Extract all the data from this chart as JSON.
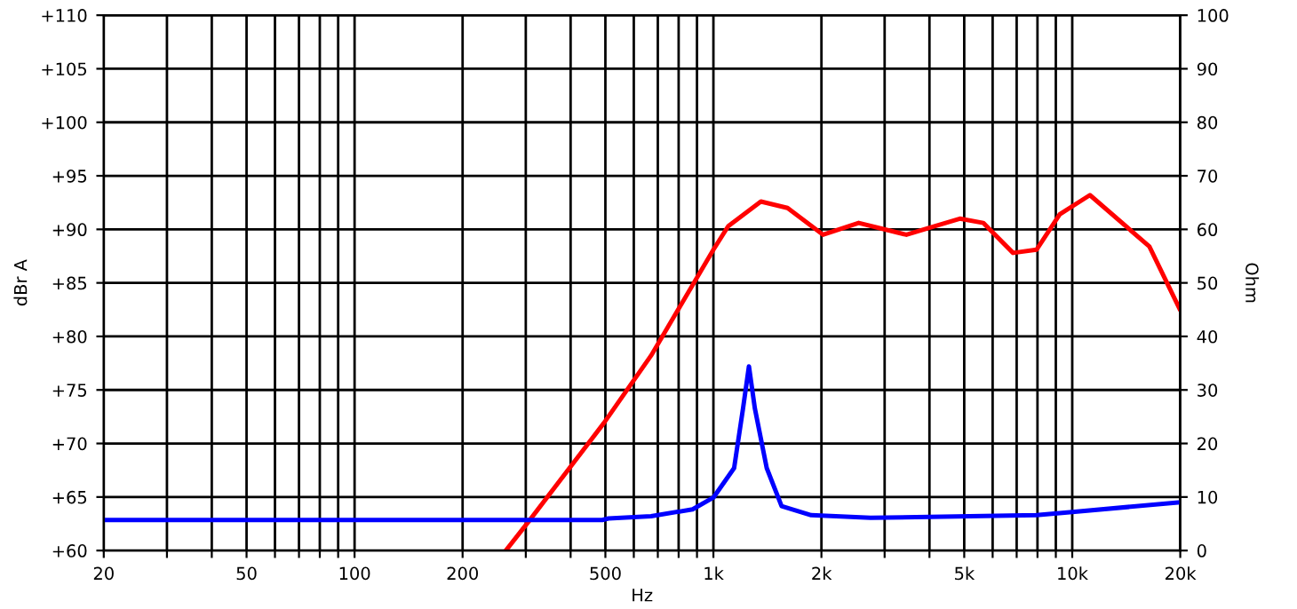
{
  "chart_data": {
    "type": "line",
    "xlabel": "Hz",
    "ylabel": "dBr A",
    "y2label": "Ohm",
    "log": "x",
    "grid": true,
    "marker": "none",
    "line_style": "solid",
    "xlim": [
      20,
      20000
    ],
    "xticks": [
      20,
      {
        "value": 30,
        "label": null
      },
      {
        "value": 40,
        "label": null
      },
      50,
      {
        "value": 60,
        "label": null
      },
      {
        "value": 70,
        "label": null
      },
      {
        "value": 80,
        "label": null
      },
      {
        "value": 90,
        "label": null
      },
      100,
      200,
      {
        "value": 300,
        "label": null
      },
      {
        "value": 400,
        "label": null
      },
      500,
      {
        "value": 600,
        "label": null
      },
      {
        "value": 700,
        "label": null
      },
      {
        "value": 800,
        "label": null
      },
      {
        "value": 900,
        "label": null
      },
      {
        "value": 1000,
        "label": "1k"
      },
      {
        "value": 2000,
        "label": "2k"
      },
      {
        "value": 3000,
        "label": null
      },
      {
        "value": 4000,
        "label": null
      },
      {
        "value": 5000,
        "label": "5k"
      },
      {
        "value": 6000,
        "label": null
      },
      {
        "value": 7000,
        "label": null
      },
      {
        "value": 8000,
        "label": null
      },
      {
        "value": 9000,
        "label": null
      },
      {
        "value": 10000,
        "label": "10k"
      },
      {
        "value": 20000,
        "label": "20k"
      }
    ],
    "ylim": [
      60,
      110
    ],
    "yticks": [
      {
        "value": 60,
        "label": "+60"
      },
      {
        "value": 65,
        "label": "+65"
      },
      {
        "value": 70,
        "label": "+70"
      },
      {
        "value": 75,
        "label": "+75"
      },
      {
        "value": 80,
        "label": "+80"
      },
      {
        "value": 85,
        "label": "+85"
      },
      {
        "value": 90,
        "label": "+90"
      },
      {
        "value": 95,
        "label": "+95"
      },
      {
        "value": 100,
        "label": "+100"
      },
      {
        "value": 105,
        "label": "+105"
      },
      {
        "value": 110,
        "label": "+110"
      }
    ],
    "y2lim": [
      0,
      100
    ],
    "y2ticks": [
      0,
      10,
      20,
      30,
      40,
      50,
      60,
      70,
      80,
      90,
      100
    ],
    "series": [
      {
        "color": "#ff0000",
        "x": [
          264,
          307,
          495,
          670,
          1000,
          1100,
          1356,
          1609,
          2020,
          2540,
          3450,
          4860,
          5650,
          6840,
          7950,
          9230,
          11200,
          14100,
          16400,
          19900
        ],
        "values": [
          60,
          62.8,
          71.9,
          78.2,
          88.1,
          90.3,
          92.6,
          92,
          89.5,
          90.6,
          89.5,
          91,
          90.6,
          87.8,
          88.1,
          91.4,
          93.2,
          90.3,
          88.4,
          82.6
        ]
      },
      {
        "color": "#0000ff",
        "axis": "y2",
        "x": [
          20,
          490,
          510,
          670,
          875,
          1000,
          1142,
          1209,
          1256,
          1305,
          1408,
          1549,
          1873,
          2740,
          7950,
          10000,
          19900
        ],
        "values": [
          5.7,
          5.7,
          6.0,
          6.4,
          7.7,
          9.9,
          15.4,
          26.5,
          34.4,
          26.5,
          15.4,
          8.3,
          6.6,
          6.1,
          6.6,
          7.2,
          9.0
        ]
      }
    ]
  }
}
